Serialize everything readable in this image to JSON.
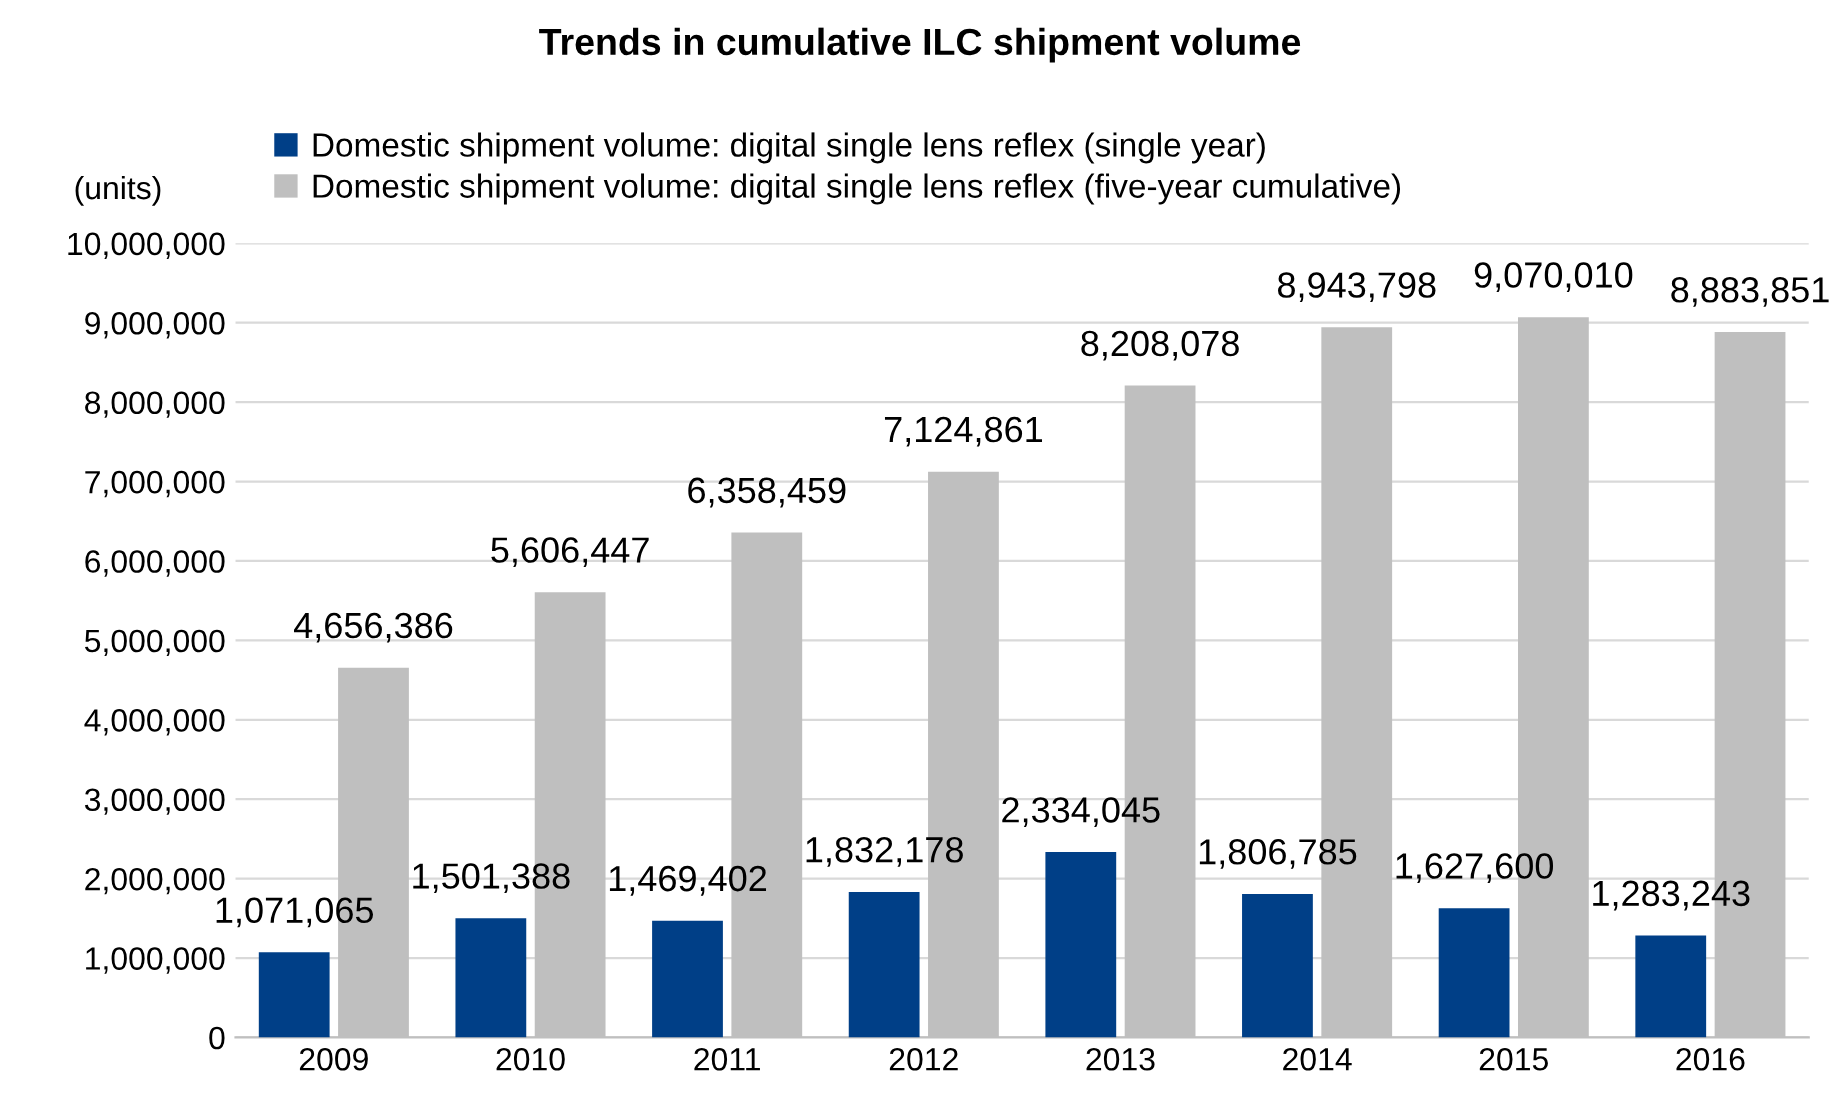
{
  "chart_data": {
    "type": "bar",
    "title": "Trends in cumulative ILC shipment volume",
    "ylabel": "(units)",
    "categories": [
      "2009",
      "2010",
      "2011",
      "2012",
      "2013",
      "2014",
      "2015",
      "2016"
    ],
    "series": [
      {
        "name": "Domestic shipment volume: digital single lens reflex (single year)",
        "color": "#003f87",
        "values": [
          1071065,
          1501388,
          1469402,
          1832178,
          2334045,
          1806785,
          1627600,
          1283243
        ],
        "value_labels": [
          "1,071,065",
          "1,501,388",
          "1,469,402",
          "1,832,178",
          "2,334,045",
          "1,806,785",
          "1,627,600",
          "1,283,243"
        ]
      },
      {
        "name": "Domestic shipment volume: digital single lens reflex (five-year cumulative)",
        "color": "#bfbfbf",
        "values": [
          4656386,
          5606447,
          6358459,
          7124861,
          8208078,
          8943798,
          9070010,
          8883851
        ],
        "value_labels": [
          "4,656,386",
          "5,606,447",
          "6,358,459",
          "7,124,861",
          "8,208,078",
          "8,943,798",
          "9,070,010",
          "8,883,851"
        ]
      }
    ],
    "ylim": [
      0,
      10000000
    ],
    "yticks": [
      0,
      {
        "value": 1000000,
        "label": "1,000,000"
      },
      {
        "value": 2000000,
        "label": "2,000,000"
      },
      {
        "value": 3000000,
        "label": "3,000,000"
      },
      {
        "value": 4000000,
        "label": "4,000,000"
      },
      {
        "value": 5000000,
        "label": "5,000,000"
      },
      {
        "value": 6000000,
        "label": "6,000,000"
      },
      {
        "value": 7000000,
        "label": "7,000,000"
      },
      {
        "value": 8000000,
        "label": "8,000,000"
      },
      {
        "value": 9000000,
        "label": "9,000,000"
      },
      {
        "value": 10000000,
        "label": "10,000,000"
      }
    ],
    "grid": "y",
    "legend": "top"
  }
}
